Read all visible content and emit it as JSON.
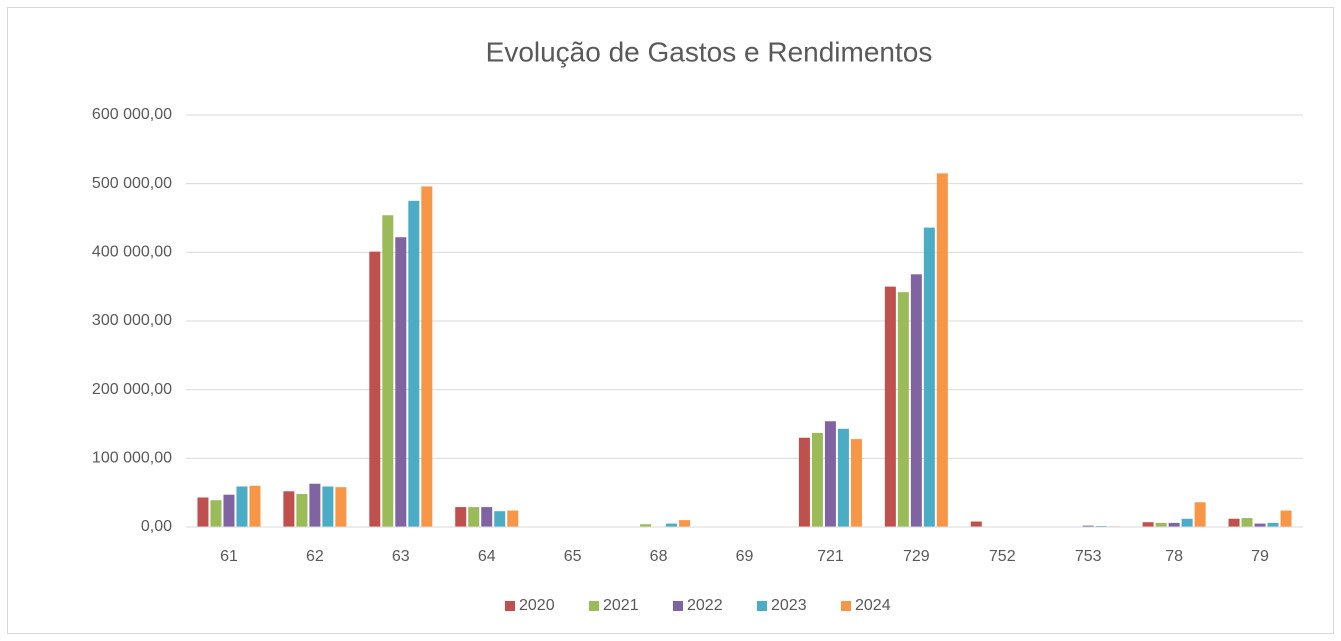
{
  "chart_data": {
    "type": "bar",
    "title": "Evolução de Gastos e Rendimentos",
    "categories": [
      "61",
      "62",
      "63",
      "64",
      "65",
      "68",
      "69",
      "721",
      "729",
      "752",
      "753",
      "78",
      "79"
    ],
    "series": [
      {
        "name": "2020",
        "color": "#c0504d",
        "values": [
          43000,
          52000,
          401000,
          29000,
          0,
          0,
          0,
          130000,
          350000,
          8000,
          500,
          7000,
          12000
        ]
      },
      {
        "name": "2021",
        "color": "#9bbb59",
        "values": [
          39000,
          48000,
          454000,
          29000,
          0,
          4000,
          0,
          137000,
          342000,
          500,
          500,
          6000,
          13000
        ]
      },
      {
        "name": "2022",
        "color": "#8064a2",
        "values": [
          47000,
          63000,
          422000,
          29000,
          0,
          0,
          0,
          154000,
          368000,
          0,
          2000,
          6000,
          5000
        ]
      },
      {
        "name": "2023",
        "color": "#4bacc6",
        "values": [
          59000,
          59000,
          475000,
          23000,
          0,
          5000,
          0,
          143000,
          436000,
          0,
          1500,
          12000,
          6000
        ]
      },
      {
        "name": "2024",
        "color": "#f79646",
        "values": [
          60000,
          58000,
          496000,
          24000,
          0,
          10000,
          0,
          128000,
          515000,
          0,
          1000,
          36000,
          24000
        ]
      }
    ],
    "ylim": [
      0,
      600000
    ],
    "yticks": [
      {
        "value": 0,
        "label": "0,00"
      },
      {
        "value": 100000,
        "label": "100 000,00"
      },
      {
        "value": 200000,
        "label": "200 000,00"
      },
      {
        "value": 300000,
        "label": "300 000,00"
      },
      {
        "value": 400000,
        "label": "400 000,00"
      },
      {
        "value": 500000,
        "label": "500 000,00"
      },
      {
        "value": 600000,
        "label": "600 000,00"
      }
    ],
    "grid": true,
    "legend": "bottom"
  }
}
